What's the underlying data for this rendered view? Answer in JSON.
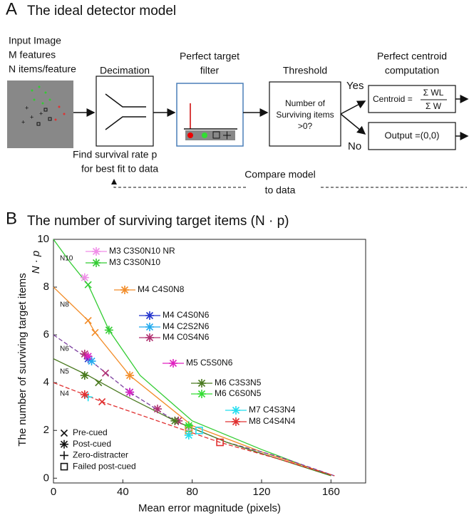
{
  "panel_a": {
    "label": "A",
    "title": "The ideal detector model",
    "input": [
      "Input Image",
      "M features",
      "N items/feature"
    ],
    "decimation": "Decimation",
    "filter": [
      "Perfect target",
      "filter"
    ],
    "threshold": "Threshold",
    "centroid_step": [
      "Perfect centroid",
      "computation"
    ],
    "threshold_box": [
      "Number of",
      "Surviving items",
      ">0?"
    ],
    "yes": "Yes",
    "no": "No",
    "centroid": {
      "lhs": "Centroid =",
      "numerator": "Σ WL",
      "denominator": "Σ W"
    },
    "output": "Output =(0,0)",
    "fit": [
      "Find survival rate p",
      "for best fit to data"
    ],
    "compare": [
      "Compare model",
      "to data"
    ]
  },
  "chart_data": {
    "type": "line",
    "label": "B",
    "title": "The number of surviving target items (N · p)",
    "y_label": "The number of surviving target items",
    "y_label_2": "N · p",
    "x_label": "Mean error magnitude (pixels)",
    "xlim": [
      0,
      180
    ],
    "ylim": [
      -0.2,
      10
    ],
    "xticks": [
      0,
      40,
      80,
      120,
      160
    ],
    "yticks": [
      0,
      2,
      4,
      6,
      8,
      10
    ],
    "curves": [
      {
        "name": "N10",
        "color": "#33cc33",
        "dashed": false,
        "x": [
          0,
          10,
          20,
          32,
          50,
          80,
          120,
          160
        ],
        "values": [
          10,
          9.0,
          8.1,
          6.2,
          4.3,
          2.4,
          1.2,
          0.1
        ]
      },
      {
        "name": "N8",
        "color": "#f28c28",
        "dashed": false,
        "x": [
          0,
          10,
          20,
          24,
          44,
          80,
          120,
          162
        ],
        "values": [
          8,
          7.3,
          6.6,
          6.1,
          4.3,
          2.2,
          1.1,
          0.1
        ]
      },
      {
        "name": "N6",
        "color": "#7b3fa0",
        "dashed": true,
        "x": [
          0,
          20,
          44,
          70,
          100,
          130,
          162
        ],
        "values": [
          6,
          5.0,
          3.6,
          2.4,
          1.5,
          0.9,
          0.1
        ]
      },
      {
        "name": "N5",
        "color": "#4a7a20",
        "dashed": false,
        "x": [
          0,
          20,
          40,
          70,
          100,
          130,
          160
        ],
        "values": [
          5,
          4.3,
          3.5,
          2.4,
          1.5,
          0.8,
          0.1
        ]
      },
      {
        "name": "N4",
        "color": "#e03030",
        "dashed": true,
        "x": [
          0,
          18,
          28,
          60,
          96,
          130,
          162
        ],
        "values": [
          4,
          3.5,
          3.2,
          2.4,
          1.5,
          0.8,
          0.1
        ]
      }
    ],
    "marker_legend": [
      "Pre-cued",
      "Post-cued",
      "Zero-distracter",
      "Failed post-cued"
    ],
    "series": [
      {
        "name": "M3 C3S0N10 NR",
        "color": "#f08ee8",
        "x": [
          18,
          78
        ],
        "values": [
          8.4,
          2.1
        ],
        "markers": [
          1,
          1
        ]
      },
      {
        "name": "M3 C3S0N10",
        "color": "#33cc33",
        "x": [
          20,
          32,
          78
        ],
        "values": [
          8.1,
          6.2,
          2.1
        ],
        "markers": [
          0,
          1,
          3
        ]
      },
      {
        "name": "M4 C4S0N8",
        "color": "#f28c28",
        "x": [
          20,
          24,
          44,
          78
        ],
        "values": [
          6.6,
          6.1,
          4.3,
          2.0
        ],
        "markers": [
          0,
          0,
          1,
          3
        ]
      },
      {
        "name": "M4 C4S0N6",
        "color": "#2233cc",
        "x": [
          20,
          44
        ],
        "values": [
          5.0,
          3.6
        ],
        "markers": [
          1,
          1
        ]
      },
      {
        "name": "M4 C2S2N6",
        "color": "#22aaee",
        "x": [
          22
        ],
        "values": [
          4.9
        ],
        "markers": [
          1
        ]
      },
      {
        "name": "M4 C0S4N6",
        "color": "#b03070",
        "x": [
          18,
          30,
          60,
          72
        ],
        "values": [
          5.2,
          4.4,
          2.9,
          2.4
        ],
        "markers": [
          1,
          0,
          1,
          1
        ]
      },
      {
        "name": "M5 C5S0N6",
        "color": "#e020c0",
        "x": [
          20,
          44
        ],
        "values": [
          5.1,
          3.6
        ],
        "markers": [
          1,
          1
        ]
      },
      {
        "name": "M6 C3S3N5",
        "color": "#4a7a20",
        "x": [
          18,
          26,
          70
        ],
        "values": [
          4.3,
          4.0,
          2.4
        ],
        "markers": [
          1,
          0,
          1
        ]
      },
      {
        "name": "M6 C6S0N5",
        "color": "#33dd33",
        "x": [
          78
        ],
        "values": [
          2.2
        ],
        "markers": [
          1
        ]
      },
      {
        "name": "M7 C4S3N4",
        "color": "#22ddee",
        "x": [
          20,
          78,
          84
        ],
        "values": [
          3.4,
          1.8,
          2.0
        ],
        "markers": [
          2,
          1,
          3
        ]
      },
      {
        "name": "M8 C4S4N4",
        "color": "#e03030",
        "x": [
          18,
          28,
          96
        ],
        "values": [
          3.5,
          3.2,
          1.5
        ],
        "markers": [
          1,
          0,
          3
        ]
      }
    ]
  }
}
